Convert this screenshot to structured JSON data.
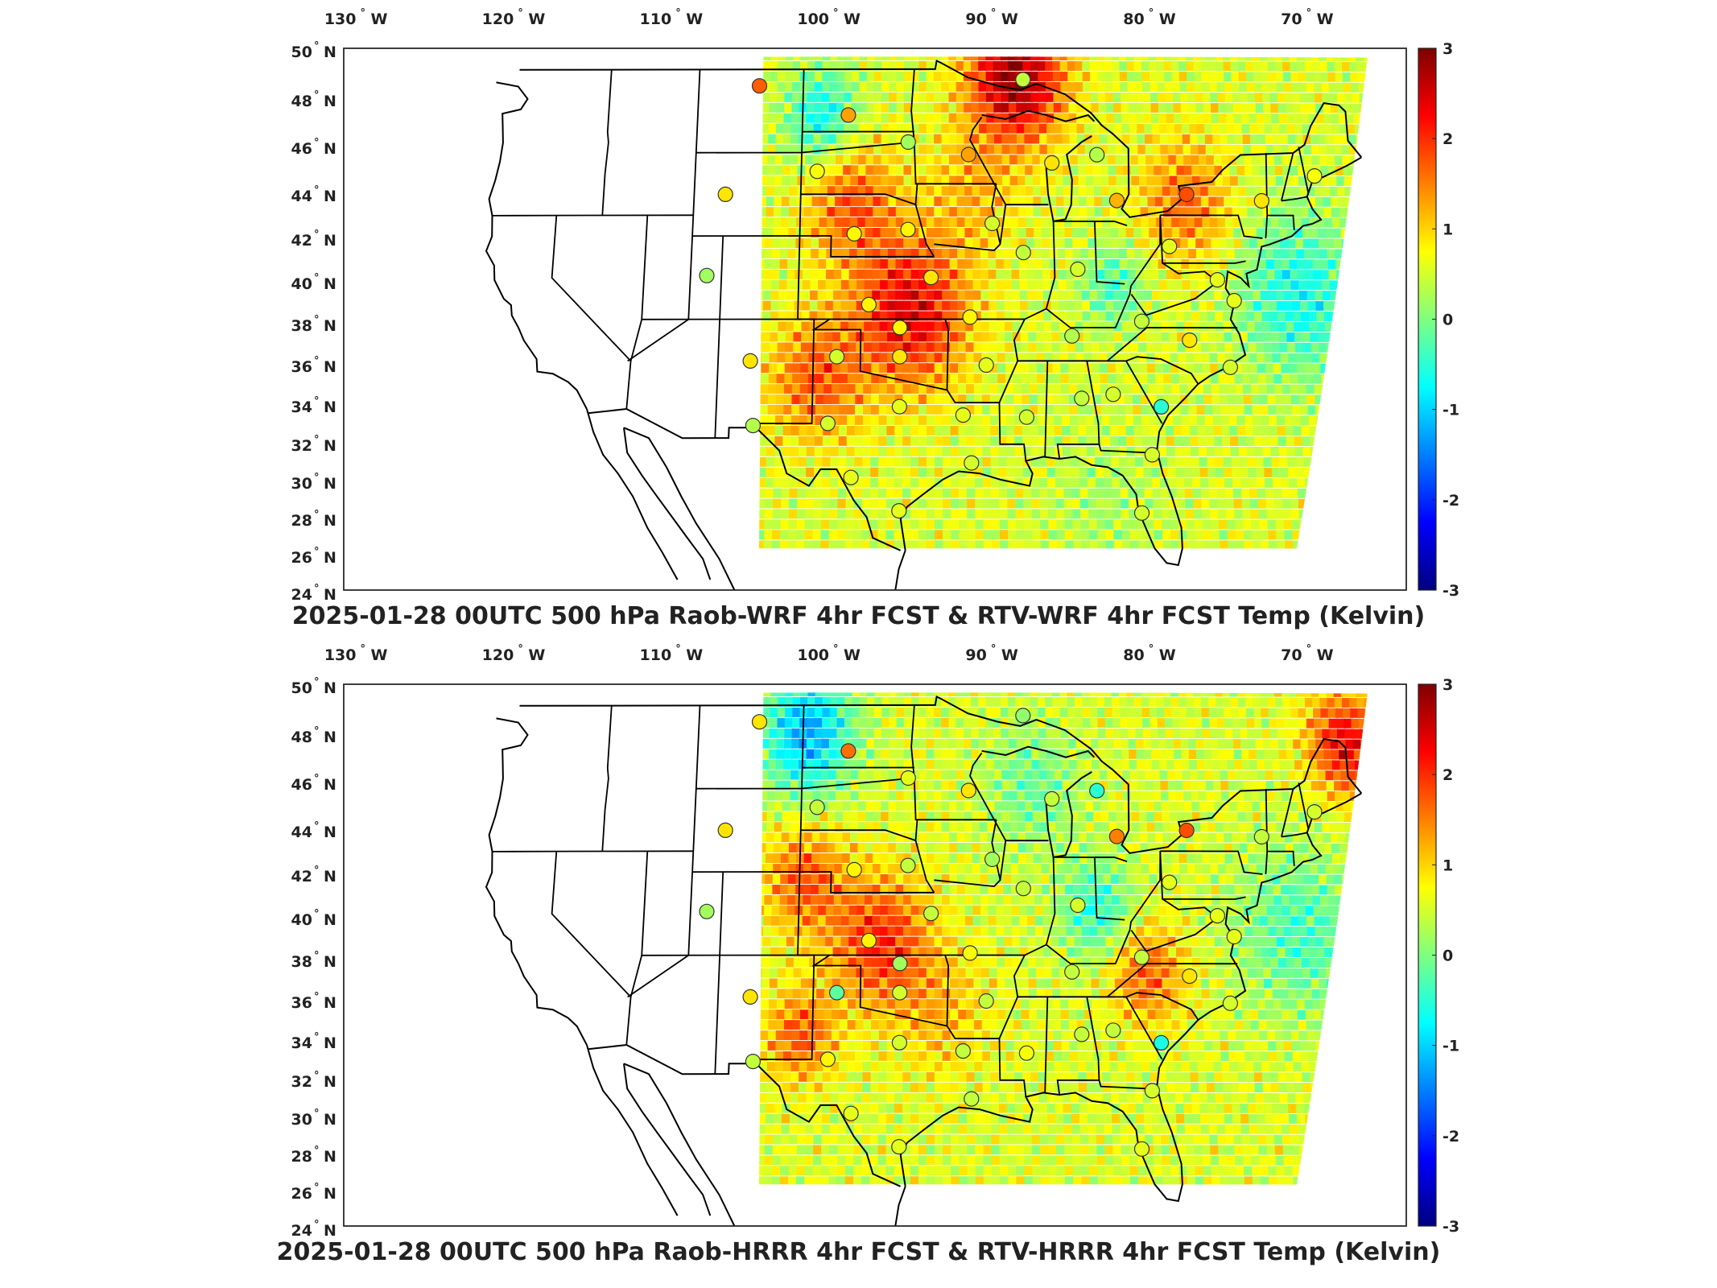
{
  "figure": {
    "panels": [
      {
        "id": "wrf",
        "title": "2025-01-28 00UTC 500 hPa Raob-WRF 4hr FCST & RTV-WRF 4hr FCST Temp (Kelvin)",
        "scheme": "wrf"
      },
      {
        "id": "hrrr",
        "title": "2025-01-28 00UTC 500 hPa Raob-HRRR 4hr FCST & RTV-HRRR 4hr FCST Temp (Kelvin)",
        "scheme": "hrrr"
      }
    ],
    "lon_ticks": [
      {
        "value": -130,
        "label": "130",
        "hemi": "W"
      },
      {
        "value": -120,
        "label": "120",
        "hemi": "W"
      },
      {
        "value": -110,
        "label": "110",
        "hemi": "W"
      },
      {
        "value": -100,
        "label": "100",
        "hemi": "W"
      },
      {
        "value": -90,
        "label": "90",
        "hemi": "W"
      },
      {
        "value": -80,
        "label": "80",
        "hemi": "W"
      },
      {
        "value": -70,
        "label": "70",
        "hemi": "W"
      }
    ],
    "lat_ticks": [
      {
        "value": 50,
        "label": "50",
        "hemi": "N"
      },
      {
        "value": 48,
        "label": "48",
        "hemi": "N"
      },
      {
        "value": 46,
        "label": "46",
        "hemi": "N"
      },
      {
        "value": 44,
        "label": "44",
        "hemi": "N"
      },
      {
        "value": 42,
        "label": "42",
        "hemi": "N"
      },
      {
        "value": 40,
        "label": "40",
        "hemi": "N"
      },
      {
        "value": 38,
        "label": "38",
        "hemi": "N"
      },
      {
        "value": 36,
        "label": "36",
        "hemi": "N"
      },
      {
        "value": 34,
        "label": "34",
        "hemi": "N"
      },
      {
        "value": 32,
        "label": "32",
        "hemi": "N"
      },
      {
        "value": 30,
        "label": "30",
        "hemi": "N"
      },
      {
        "value": 28,
        "label": "28",
        "hemi": "N"
      },
      {
        "value": 26,
        "label": "26",
        "hemi": "N"
      },
      {
        "value": 24,
        "label": "24",
        "hemi": "N"
      }
    ],
    "colorbar": {
      "min": -3,
      "max": 3,
      "ticks": [
        3,
        2,
        1,
        0,
        -1,
        -2,
        -3
      ],
      "tick_labels": [
        "3",
        "2",
        "1",
        "0",
        "-1",
        "-2",
        "-3"
      ],
      "colormap": "jet",
      "stops": [
        "#00007f",
        "#0000ff",
        "#007fff",
        "#00ffff",
        "#7fff7f",
        "#ffff00",
        "#ff7f00",
        "#ff0000",
        "#7f0000"
      ]
    },
    "map_extent": {
      "lon_min": -132,
      "lon_max": -66,
      "lat_min": 24,
      "lat_max": 50
    },
    "raob_wrf": [
      {
        "lon": -107.0,
        "lat": 48.2,
        "v": 1.7
      },
      {
        "lon": -101.0,
        "lat": 46.8,
        "v": 1.3
      },
      {
        "lon": -97.0,
        "lat": 45.5,
        "v": 0.2
      },
      {
        "lon": -93.0,
        "lat": 44.9,
        "v": 1.3
      },
      {
        "lon": -89.3,
        "lat": 48.5,
        "v": 0.4
      },
      {
        "lon": -87.5,
        "lat": 44.5,
        "v": 0.9
      },
      {
        "lon": -84.5,
        "lat": 44.9,
        "v": 0.3
      },
      {
        "lon": -83.3,
        "lat": 42.7,
        "v": 1.2
      },
      {
        "lon": -78.7,
        "lat": 43.0,
        "v": 1.8
      },
      {
        "lon": -73.8,
        "lat": 42.7,
        "v": 0.9
      },
      {
        "lon": -70.2,
        "lat": 43.9,
        "v": 0.7
      },
      {
        "lon": -103.0,
        "lat": 44.1,
        "v": 0.7
      },
      {
        "lon": -109.0,
        "lat": 43.0,
        "v": 0.9
      },
      {
        "lon": -100.5,
        "lat": 41.1,
        "v": 0.8
      },
      {
        "lon": -97.0,
        "lat": 41.3,
        "v": 0.8
      },
      {
        "lon": -91.5,
        "lat": 41.6,
        "v": 0.5
      },
      {
        "lon": -89.5,
        "lat": 40.2,
        "v": 0.4
      },
      {
        "lon": -86.0,
        "lat": 39.4,
        "v": 0.5
      },
      {
        "lon": -80.0,
        "lat": 40.5,
        "v": 0.6
      },
      {
        "lon": -77.0,
        "lat": 38.9,
        "v": 0.6
      },
      {
        "lon": -76.0,
        "lat": 37.9,
        "v": 0.6
      },
      {
        "lon": -110.0,
        "lat": 39.1,
        "v": 0.2
      },
      {
        "lon": -99.5,
        "lat": 37.7,
        "v": 0.8
      },
      {
        "lon": -95.5,
        "lat": 39.0,
        "v": 0.9
      },
      {
        "lon": -93.0,
        "lat": 37.1,
        "v": 0.8
      },
      {
        "lon": -97.5,
        "lat": 36.6,
        "v": 0.8
      },
      {
        "lon": -97.5,
        "lat": 35.2,
        "v": 0.9
      },
      {
        "lon": -101.5,
        "lat": 35.2,
        "v": 0.5
      },
      {
        "lon": -107.0,
        "lat": 35.0,
        "v": 0.9
      },
      {
        "lon": -92.0,
        "lat": 34.8,
        "v": 0.6
      },
      {
        "lon": -86.5,
        "lat": 36.2,
        "v": 0.3
      },
      {
        "lon": -82.0,
        "lat": 36.9,
        "v": 0.4
      },
      {
        "lon": -79.0,
        "lat": 36.0,
        "v": 0.9
      },
      {
        "lon": -76.5,
        "lat": 34.7,
        "v": 0.5
      },
      {
        "lon": -81.0,
        "lat": 32.8,
        "v": -0.5
      },
      {
        "lon": -84.0,
        "lat": 33.4,
        "v": 0.5
      },
      {
        "lon": -86.0,
        "lat": 33.2,
        "v": 0.4
      },
      {
        "lon": -89.5,
        "lat": 32.3,
        "v": 0.5
      },
      {
        "lon": -93.5,
        "lat": 32.4,
        "v": 0.6
      },
      {
        "lon": -97.5,
        "lat": 32.8,
        "v": 0.6
      },
      {
        "lon": -102.0,
        "lat": 32.0,
        "v": 0.5
      },
      {
        "lon": -106.7,
        "lat": 31.9,
        "v": 0.3
      },
      {
        "lon": -100.5,
        "lat": 29.4,
        "v": 0.6
      },
      {
        "lon": -97.5,
        "lat": 27.8,
        "v": 0.6
      },
      {
        "lon": -93.0,
        "lat": 30.1,
        "v": 0.5
      },
      {
        "lon": -81.7,
        "lat": 30.5,
        "v": 0.5
      },
      {
        "lon": -82.5,
        "lat": 27.7,
        "v": 0.5
      }
    ],
    "raob_hrrr": [
      {
        "lon": -107.0,
        "lat": 48.2,
        "v": 0.9
      },
      {
        "lon": -101.0,
        "lat": 46.8,
        "v": 1.6
      },
      {
        "lon": -97.0,
        "lat": 45.5,
        "v": 0.6
      },
      {
        "lon": -93.0,
        "lat": 44.9,
        "v": 0.9
      },
      {
        "lon": -89.3,
        "lat": 48.5,
        "v": 0.1
      },
      {
        "lon": -87.5,
        "lat": 44.5,
        "v": 0.4
      },
      {
        "lon": -84.5,
        "lat": 44.9,
        "v": -0.5
      },
      {
        "lon": -83.3,
        "lat": 42.7,
        "v": 1.5
      },
      {
        "lon": -78.7,
        "lat": 43.0,
        "v": 1.8
      },
      {
        "lon": -73.8,
        "lat": 42.7,
        "v": 0.4
      },
      {
        "lon": -70.2,
        "lat": 43.9,
        "v": 0.5
      },
      {
        "lon": -103.0,
        "lat": 44.1,
        "v": 0.4
      },
      {
        "lon": -109.0,
        "lat": 43.0,
        "v": 0.9
      },
      {
        "lon": -100.5,
        "lat": 41.1,
        "v": 0.8
      },
      {
        "lon": -97.0,
        "lat": 41.3,
        "v": 0.4
      },
      {
        "lon": -91.5,
        "lat": 41.6,
        "v": 0.2
      },
      {
        "lon": -89.5,
        "lat": 40.2,
        "v": 0.4
      },
      {
        "lon": -86.0,
        "lat": 39.4,
        "v": 0.5
      },
      {
        "lon": -80.0,
        "lat": 40.5,
        "v": 0.6
      },
      {
        "lon": -77.0,
        "lat": 38.9,
        "v": 0.6
      },
      {
        "lon": -76.0,
        "lat": 37.9,
        "v": 0.6
      },
      {
        "lon": -110.0,
        "lat": 39.1,
        "v": 0.2
      },
      {
        "lon": -99.5,
        "lat": 37.7,
        "v": 0.8
      },
      {
        "lon": -95.5,
        "lat": 39.0,
        "v": 0.4
      },
      {
        "lon": -93.0,
        "lat": 37.1,
        "v": 0.7
      },
      {
        "lon": -97.5,
        "lat": 36.6,
        "v": 0.2
      },
      {
        "lon": -97.5,
        "lat": 35.2,
        "v": 0.5
      },
      {
        "lon": -101.5,
        "lat": 35.2,
        "v": -0.2
      },
      {
        "lon": -107.0,
        "lat": 35.0,
        "v": 0.9
      },
      {
        "lon": -92.0,
        "lat": 34.8,
        "v": 0.4
      },
      {
        "lon": -86.5,
        "lat": 36.2,
        "v": 0.4
      },
      {
        "lon": -82.0,
        "lat": 36.9,
        "v": 0.4
      },
      {
        "lon": -79.0,
        "lat": 36.0,
        "v": 0.9
      },
      {
        "lon": -76.5,
        "lat": 34.7,
        "v": 0.5
      },
      {
        "lon": -81.0,
        "lat": 32.8,
        "v": -0.6
      },
      {
        "lon": -84.0,
        "lat": 33.4,
        "v": 0.4
      },
      {
        "lon": -86.0,
        "lat": 33.2,
        "v": 0.4
      },
      {
        "lon": -89.5,
        "lat": 32.3,
        "v": 0.7
      },
      {
        "lon": -93.5,
        "lat": 32.4,
        "v": 0.4
      },
      {
        "lon": -97.5,
        "lat": 32.8,
        "v": 0.5
      },
      {
        "lon": -102.0,
        "lat": 32.0,
        "v": 0.8
      },
      {
        "lon": -106.7,
        "lat": 31.9,
        "v": 0.4
      },
      {
        "lon": -100.5,
        "lat": 29.4,
        "v": 0.6
      },
      {
        "lon": -97.5,
        "lat": 27.8,
        "v": 0.6
      },
      {
        "lon": -93.0,
        "lat": 30.1,
        "v": 0.4
      },
      {
        "lon": -81.7,
        "lat": 30.5,
        "v": 0.5
      },
      {
        "lon": -82.5,
        "lat": 27.7,
        "v": 0.6
      }
    ]
  }
}
